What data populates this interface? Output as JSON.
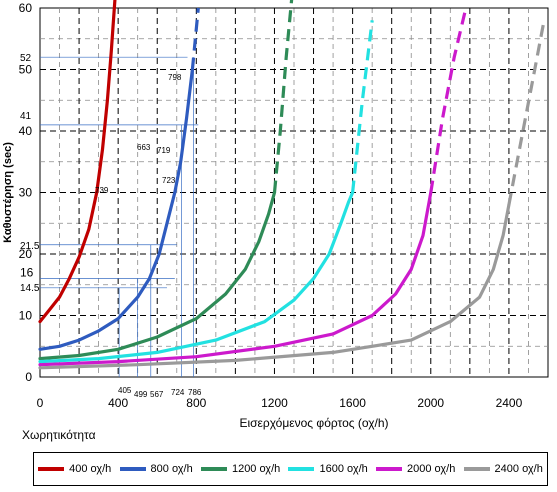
{
  "chart_data": {
    "type": "line",
    "title": "",
    "xlabel": "Εισερχόμενος φόρτος (οχ/h)",
    "ylabel": "Καθυστέρηση (sec)",
    "xlim": [
      0,
      2600
    ],
    "ylim": [
      0,
      60
    ],
    "xticks": [
      0,
      400,
      800,
      1200,
      1600,
      2000,
      2400
    ],
    "yticks": [
      0,
      10,
      20,
      30,
      40,
      50,
      60
    ],
    "grid": true,
    "legend_position": "bottom",
    "footer_label": "Χωρητικότητα",
    "series": [
      {
        "name": "400 οχ/h",
        "color": "#c00000",
        "x": [
          0,
          50,
          100,
          150,
          200,
          250,
          290,
          320,
          345,
          365,
          385
        ],
        "y": [
          9,
          11,
          13,
          16,
          19.5,
          24,
          30,
          37,
          45,
          53,
          62
        ],
        "dashed_from": null
      },
      {
        "name": "800 οχ/h",
        "color": "#2e5bbf",
        "x": [
          0,
          100,
          200,
          300,
          400,
          500,
          560,
          610,
          650,
          690,
          720,
          750,
          780,
          810
        ],
        "y": [
          4.5,
          5,
          6,
          7.5,
          9.5,
          13,
          16,
          20,
          25,
          30,
          35,
          42,
          50,
          60
        ],
        "dashed_from": 780
      },
      {
        "name": "1200 οχ/h",
        "color": "#2e8b57",
        "x": [
          0,
          200,
          400,
          600,
          800,
          950,
          1050,
          1120,
          1170,
          1200,
          1230,
          1260,
          1290
        ],
        "y": [
          3,
          3.5,
          4.5,
          6.5,
          9.5,
          13.5,
          17.5,
          22,
          26.5,
          30,
          40,
          52,
          62
        ],
        "dashed_from": 1200
      },
      {
        "name": "1600 οχ/h",
        "color": "#22e1e1",
        "x": [
          0,
          300,
          600,
          900,
          1150,
          1300,
          1400,
          1480,
          1540,
          1580,
          1600,
          1650,
          1700
        ],
        "y": [
          2.5,
          3,
          4,
          6,
          9,
          12.5,
          16,
          20,
          25,
          28.5,
          30,
          45,
          58
        ],
        "dashed_from": 1600
      },
      {
        "name": "2000 οχ/h",
        "color": "#cc19cc",
        "x": [
          0,
          400,
          800,
          1200,
          1500,
          1700,
          1820,
          1900,
          1960,
          2000,
          2060,
          2120,
          2180
        ],
        "y": [
          2,
          2.5,
          3.3,
          5,
          7,
          10,
          13.5,
          17.5,
          23,
          30,
          42,
          52,
          60
        ],
        "dashed_from": 2000
      },
      {
        "name": "2400 οχ/h",
        "color": "#9a9a9a",
        "x": [
          0,
          500,
          1000,
          1500,
          1900,
          2100,
          2250,
          2320,
          2370,
          2400,
          2460,
          2520,
          2580
        ],
        "y": [
          1.5,
          2,
          2.7,
          4,
          6,
          9,
          13,
          17.5,
          23,
          28,
          38,
          48,
          58
        ],
        "dashed_from": 2400
      }
    ],
    "annotations": {
      "y_values": [
        "52",
        "41",
        "21.5",
        "16",
        "14.5"
      ],
      "points": [
        "798",
        "663",
        "719",
        "723",
        "739",
        "405",
        "499",
        "567",
        "724",
        "786"
      ]
    }
  }
}
